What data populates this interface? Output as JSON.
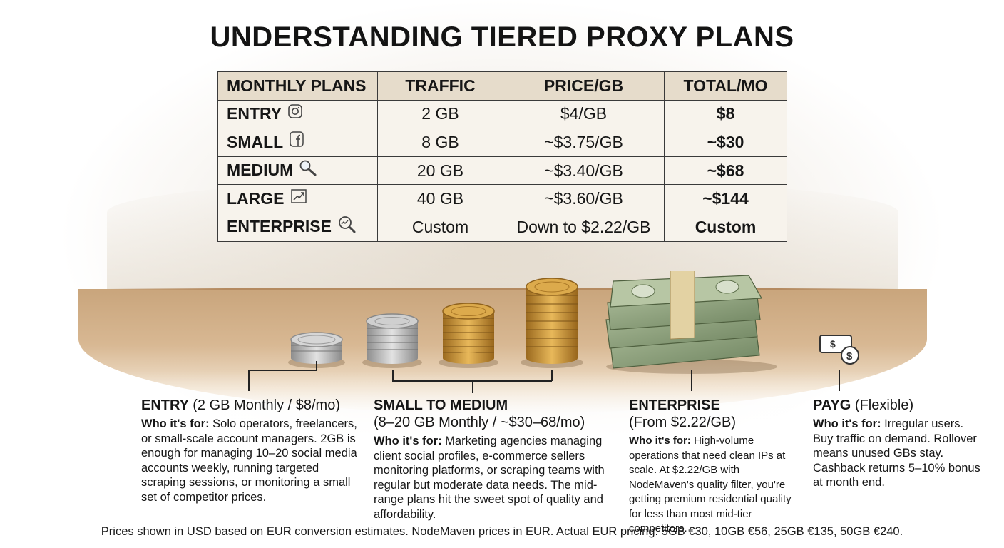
{
  "title": "UNDERSTANDING TIERED PROXY PLANS",
  "table": {
    "headers": [
      "MONTHLY PLANS",
      "TRAFFIC",
      "PRICE/GB",
      "TOTAL/MO"
    ],
    "rows": [
      {
        "plan": "ENTRY",
        "icon": "instagram-icon",
        "traffic": "2 GB",
        "price": "$4/GB",
        "total": "$8"
      },
      {
        "plan": "SMALL",
        "icon": "facebook-icon",
        "traffic": "8 GB",
        "price": "~$3.75/GB",
        "total": "~$30"
      },
      {
        "plan": "MEDIUM",
        "icon": "magnifier-icon",
        "traffic": "20 GB",
        "price": "~$3.40/GB",
        "total": "~$68"
      },
      {
        "plan": "LARGE",
        "icon": "trend-chart-icon",
        "traffic": "40 GB",
        "price": "~$3.60/GB",
        "total": "~$144"
      },
      {
        "plan": "ENTERPRISE",
        "icon": "search-analytics-icon",
        "traffic": "Custom",
        "price": "Down to $2.22/GB",
        "total": "Custom"
      }
    ]
  },
  "blocks": {
    "entry": {
      "title": "ENTRY",
      "title_detail": "(2 GB Monthly / $8/mo)",
      "who_label": "Who it's for:",
      "body": "Solo operators, freelancers, or small-scale account managers. 2GB is enough for managing 10–20 social media accounts weekly, running targeted scraping sessions, or monitoring a small set of competitor prices."
    },
    "small_medium": {
      "title": "SMALL TO MEDIUM",
      "title_detail": "(8–20 GB Monthly / ~$30–68/mo)",
      "who_label": "Who it's for:",
      "body": "Marketing agencies managing client social profiles, e-commerce sellers monitoring platforms, or scraping teams with regular but moderate data needs. The mid-range plans hit the sweet spot of quality and affordability."
    },
    "enterprise": {
      "title": "ENTERPRISE",
      "title_detail": "(From $2.22/GB)",
      "who_label": "Who it's for:",
      "body": "High-volume operations that need clean IPs at scale. At $2.22/GB with NodeMaven's quality filter, you're getting premium residential quality for less than most mid-tier competitors."
    },
    "payg": {
      "title": "PAYG",
      "title_detail": "(Flexible)",
      "who_label": "Who it's for:",
      "body": "Irregular users. Buy traffic on demand. Rollover means unused GBs stay. Cashback returns 5–10% bonus at month end."
    }
  },
  "footnote": "Prices shown in USD based on EUR conversion estimates. NodeMaven prices in EUR. Actual EUR pricing: 5GB €30, 10GB €56, 25GB €135, 50GB €240.",
  "colors": {
    "header_bg": "#e6dccb",
    "row_bg": "#f7f3ec",
    "wood": "#c9a57c",
    "gold": "#c9942f",
    "silver": "#bdbdbd",
    "bill_green": "#8fa27c"
  }
}
